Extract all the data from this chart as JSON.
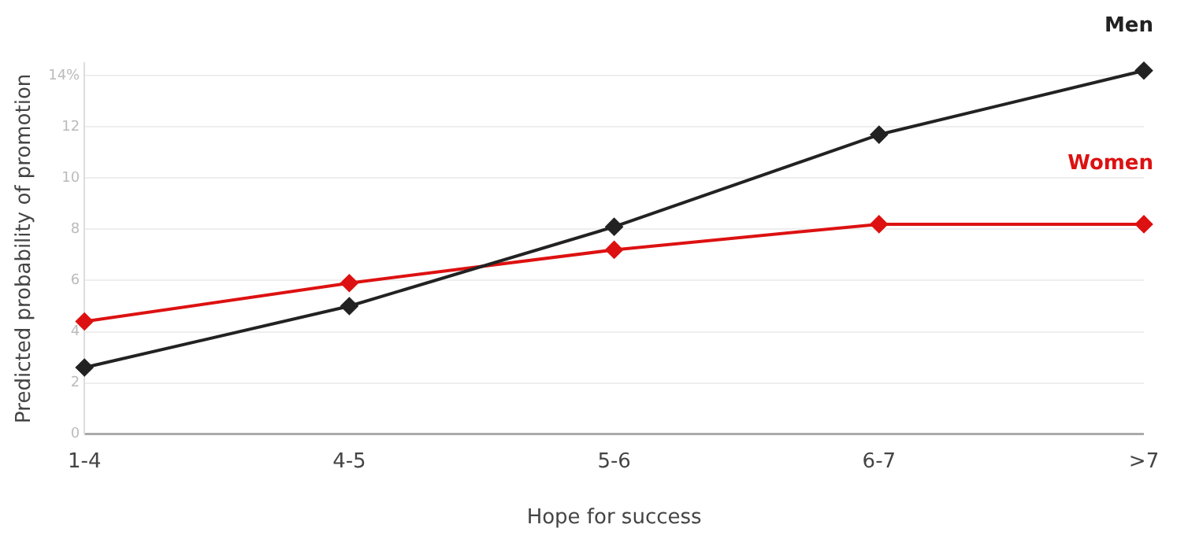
{
  "chart_data": {
    "type": "line",
    "xlabel": "Hope for success",
    "ylabel": "Predicted probability of promotion",
    "categories": [
      "1-4",
      "4-5",
      "5-6",
      "6-7",
      ">7"
    ],
    "ylim": [
      0,
      14.5
    ],
    "yticks": [
      0,
      2,
      4,
      6,
      8,
      10,
      12,
      {
        "value": 14,
        "label": "14%"
      }
    ],
    "series": [
      {
        "name": "Men",
        "color": "#222222",
        "values": [
          2.6,
          5.0,
          8.1,
          11.7,
          14.2
        ]
      },
      {
        "name": "Women",
        "color": "#dd1111",
        "values": [
          4.4,
          5.9,
          7.2,
          8.2,
          8.2
        ]
      }
    ],
    "grid": "y",
    "legend": false,
    "marker": "diamond",
    "line_style": "solid"
  }
}
